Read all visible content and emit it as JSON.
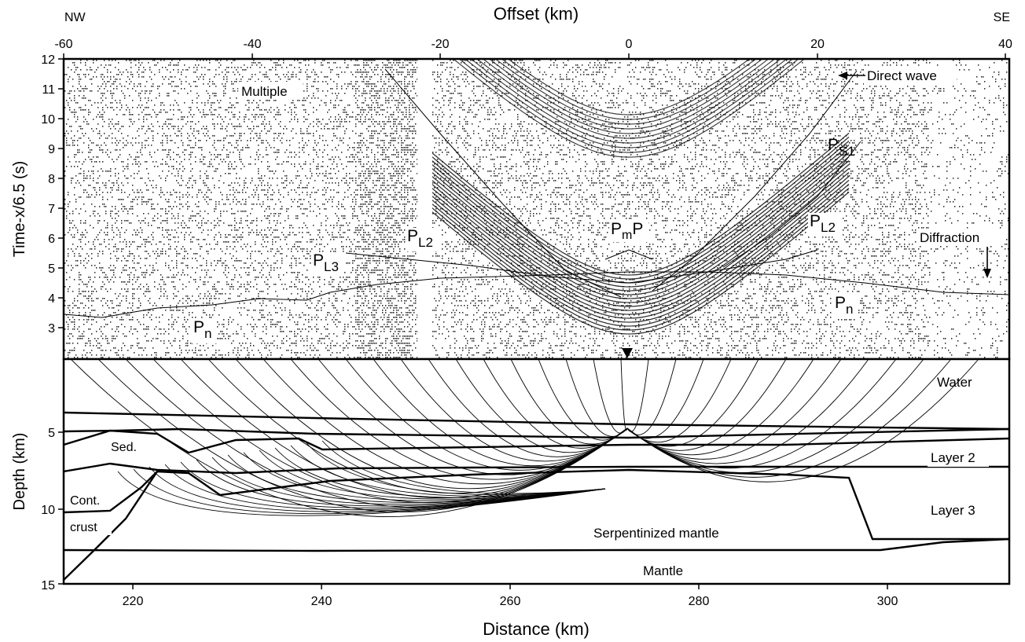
{
  "top_axis": {
    "title": "Offset (km)",
    "left_label": "NW",
    "right_label": "SE",
    "ticks": [
      "-60",
      "-40",
      "-20",
      "0",
      "20",
      "40"
    ]
  },
  "upper_panel": {
    "ylabel": "Time-x/6.5 (s)",
    "yticks": [
      "12",
      "11",
      "10",
      "9",
      "8",
      "7",
      "6",
      "5",
      "4",
      "3"
    ],
    "labels": {
      "multiple": "Multiple",
      "direct_wave": "Direct wave",
      "diffraction": "Diffraction",
      "ps1_main": "P",
      "ps1_sub": "S1",
      "pl2_left_main": "P",
      "pl2_left_sub": "L2",
      "pl2_right_main": "P",
      "pl2_right_sub": "L2",
      "pl3_main": "P",
      "pl3_sub": "L3",
      "pmp_p1": "P",
      "pmp_sub": "m",
      "pmp_p2": "P",
      "pn_left_main": "P",
      "pn_left_sub": "n",
      "pn_right_main": "P",
      "pn_right_sub": "n"
    }
  },
  "lower_panel": {
    "ylabel": "Depth (km)",
    "yticks": [
      "5",
      "10",
      "15"
    ],
    "labels": {
      "water": "Water",
      "layer2": "Layer 2",
      "layer3": "Layer 3",
      "sed": "Sed.",
      "cont": "Cont.",
      "crust": "crust",
      "serpentinized": "Serpentinized mantle",
      "mantle": "Mantle"
    }
  },
  "bottom_axis": {
    "title": "Distance (km)",
    "ticks": [
      "220",
      "240",
      "260",
      "280",
      "300"
    ]
  }
}
